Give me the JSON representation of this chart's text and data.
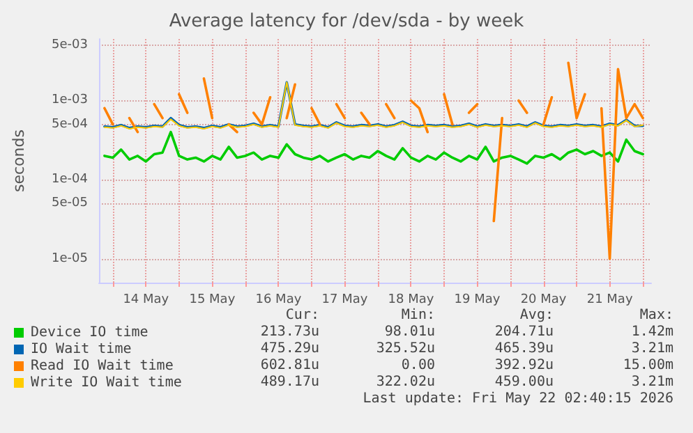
{
  "chart_data": {
    "type": "line",
    "title": "Average latency for /dev/sda - by week",
    "ylabel": "seconds",
    "log": "y",
    "grid": true,
    "legend": "bottom",
    "marker": "none",
    "xlim": [
      "2026-05-13T19:00",
      "2026-05-22T03:00"
    ],
    "xticks": [
      {
        "value": "2026-05-14T00:00",
        "label": null
      },
      {
        "value": "2026-05-14T12:00",
        "label": "14 May"
      },
      {
        "value": "2026-05-15T00:00",
        "label": null
      },
      {
        "value": "2026-05-15T12:00",
        "label": "15 May"
      },
      {
        "value": "2026-05-16T00:00",
        "label": null
      },
      {
        "value": "2026-05-16T12:00",
        "label": "16 May"
      },
      {
        "value": "2026-05-17T00:00",
        "label": null
      },
      {
        "value": "2026-05-17T12:00",
        "label": "17 May"
      },
      {
        "value": "2026-05-18T00:00",
        "label": null
      },
      {
        "value": "2026-05-18T12:00",
        "label": "18 May"
      },
      {
        "value": "2026-05-19T00:00",
        "label": null
      },
      {
        "value": "2026-05-19T12:00",
        "label": "19 May"
      },
      {
        "value": "2026-05-20T00:00",
        "label": null
      },
      {
        "value": "2026-05-20T12:00",
        "label": "20 May"
      },
      {
        "value": "2026-05-21T00:00",
        "label": null
      },
      {
        "value": "2026-05-21T12:00",
        "label": "21 May"
      },
      {
        "value": "2026-05-22T00:00",
        "label": null
      }
    ],
    "ylim": [
      5e-06,
      0.006
    ],
    "yticks": [
      {
        "value": 1e-05,
        "label": "1e-05"
      },
      {
        "value": 5e-05,
        "label": "5e-05"
      },
      {
        "value": 0.0001,
        "label": "1e-04"
      },
      {
        "value": 0.0005,
        "label": "5e-04"
      },
      {
        "value": 0.001,
        "label": "1e-03"
      },
      {
        "value": 0.005,
        "label": "5e-03"
      }
    ],
    "x": [
      "2026-05-13T21:00",
      "2026-05-14T00:00",
      "2026-05-14T03:00",
      "2026-05-14T06:00",
      "2026-05-14T09:00",
      "2026-05-14T12:00",
      "2026-05-14T15:00",
      "2026-05-14T18:00",
      "2026-05-14T21:00",
      "2026-05-15T00:00",
      "2026-05-15T03:00",
      "2026-05-15T06:00",
      "2026-05-15T09:00",
      "2026-05-15T12:00",
      "2026-05-15T15:00",
      "2026-05-15T18:00",
      "2026-05-15T21:00",
      "2026-05-16T00:00",
      "2026-05-16T03:00",
      "2026-05-16T06:00",
      "2026-05-16T09:00",
      "2026-05-16T12:00",
      "2026-05-16T15:00",
      "2026-05-16T18:00",
      "2026-05-16T21:00",
      "2026-05-17T00:00",
      "2026-05-17T03:00",
      "2026-05-17T06:00",
      "2026-05-17T09:00",
      "2026-05-17T12:00",
      "2026-05-17T15:00",
      "2026-05-17T18:00",
      "2026-05-17T21:00",
      "2026-05-18T00:00",
      "2026-05-18T03:00",
      "2026-05-18T06:00",
      "2026-05-18T09:00",
      "2026-05-18T12:00",
      "2026-05-18T15:00",
      "2026-05-18T18:00",
      "2026-05-18T21:00",
      "2026-05-19T00:00",
      "2026-05-19T03:00",
      "2026-05-19T06:00",
      "2026-05-19T09:00",
      "2026-05-19T12:00",
      "2026-05-19T15:00",
      "2026-05-19T18:00",
      "2026-05-19T21:00",
      "2026-05-20T00:00",
      "2026-05-20T03:00",
      "2026-05-20T06:00",
      "2026-05-20T09:00",
      "2026-05-20T12:00",
      "2026-05-20T15:00",
      "2026-05-20T18:00",
      "2026-05-20T21:00",
      "2026-05-21T00:00",
      "2026-05-21T03:00",
      "2026-05-21T06:00",
      "2026-05-21T09:00",
      "2026-05-21T12:00",
      "2026-05-21T15:00",
      "2026-05-21T18:00",
      "2026-05-21T21:00",
      "2026-05-22T00:00"
    ],
    "series": [
      {
        "name": "Device IO time",
        "color": "#00cc00",
        "values": [
          0.0002,
          0.00019,
          0.00024,
          0.00018,
          0.0002,
          0.00017,
          0.00021,
          0.00022,
          0.0004,
          0.0002,
          0.00018,
          0.00019,
          0.00017,
          0.0002,
          0.00018,
          0.00026,
          0.00019,
          0.0002,
          0.00022,
          0.00018,
          0.0002,
          0.00019,
          0.00028,
          0.00021,
          0.00019,
          0.00018,
          0.0002,
          0.00017,
          0.00019,
          0.00021,
          0.00018,
          0.0002,
          0.00019,
          0.00023,
          0.0002,
          0.00018,
          0.00025,
          0.00019,
          0.00017,
          0.0002,
          0.00018,
          0.00022,
          0.00019,
          0.00017,
          0.0002,
          0.00018,
          0.00026,
          0.00017,
          0.00019,
          0.0002,
          0.00018,
          0.00016,
          0.0002,
          0.00019,
          0.00021,
          0.00018,
          0.00022,
          0.00024,
          0.00021,
          0.00023,
          0.0002,
          0.00022,
          0.00017,
          0.00032,
          0.00023,
          0.00021
        ]
      },
      {
        "name": "IO Wait time",
        "color": "#0066b3",
        "values": [
          0.00047,
          0.00046,
          0.00049,
          0.00045,
          0.00047,
          0.00046,
          0.00048,
          0.00047,
          0.0006,
          0.00049,
          0.00046,
          0.00047,
          0.00045,
          0.00048,
          0.00046,
          0.0005,
          0.00047,
          0.00048,
          0.00051,
          0.00047,
          0.00049,
          0.00047,
          0.0017,
          0.0005,
          0.00048,
          0.00047,
          0.00049,
          0.00046,
          0.00053,
          0.00048,
          0.00047,
          0.00049,
          0.00048,
          0.0005,
          0.00047,
          0.00049,
          0.00054,
          0.00048,
          0.00047,
          0.00049,
          0.00048,
          0.00049,
          0.00047,
          0.00048,
          0.00051,
          0.00047,
          0.0005,
          0.00048,
          0.00049,
          0.00048,
          0.0005,
          0.00047,
          0.00053,
          0.00048,
          0.00047,
          0.00049,
          0.00048,
          0.0005,
          0.00048,
          0.00049,
          0.00047,
          0.00051,
          0.00049,
          0.00057,
          0.00048,
          0.00048
        ]
      },
      {
        "name": "Read IO Wait time",
        "color": "#ff8000",
        "values": [
          0.0008,
          0.0005,
          null,
          0.0006,
          0.0004,
          null,
          0.0009,
          0.0006,
          null,
          0.0012,
          0.0007,
          null,
          0.0019,
          0.0006,
          null,
          0.0005,
          0.0004,
          null,
          0.0007,
          0.0005,
          0.0011,
          null,
          0.0006,
          0.0016,
          null,
          0.0008,
          0.0005,
          null,
          0.0009,
          0.0006,
          null,
          0.0007,
          0.0005,
          null,
          0.0009,
          0.0006,
          null,
          0.001,
          0.0008,
          0.0004,
          null,
          0.0012,
          0.0005,
          null,
          0.0007,
          0.0009,
          null,
          3e-05,
          0.0006,
          null,
          0.001,
          0.0007,
          null,
          0.0005,
          0.0011,
          null,
          0.003,
          0.0006,
          0.0012,
          null,
          0.0008,
          1e-05,
          0.0025,
          0.0006,
          0.0009,
          0.0006
        ]
      },
      {
        "name": "Write IO Wait time",
        "color": "#ffcc00",
        "values": [
          0.00046,
          0.00045,
          0.00048,
          0.00044,
          0.00046,
          0.00045,
          0.00047,
          0.00046,
          0.00058,
          0.00048,
          0.00045,
          0.00046,
          0.00044,
          0.00047,
          0.00045,
          0.00049,
          0.00046,
          0.00047,
          0.0005,
          0.00046,
          0.00048,
          0.00046,
          0.0017,
          0.00049,
          0.00047,
          0.00046,
          0.00048,
          0.00045,
          0.00052,
          0.00047,
          0.00046,
          0.00048,
          0.00047,
          0.00049,
          0.00046,
          0.00048,
          0.00053,
          0.00047,
          0.00046,
          0.00048,
          0.00047,
          0.00048,
          0.00046,
          0.00047,
          0.0005,
          0.00046,
          0.00049,
          0.00047,
          0.00048,
          0.00047,
          0.00049,
          0.00046,
          0.00052,
          0.00047,
          0.00046,
          0.00048,
          0.00047,
          0.00049,
          0.00047,
          0.00048,
          0.00046,
          0.0005,
          0.00048,
          0.00056,
          0.00047,
          0.00049
        ]
      }
    ],
    "annotations": [
      "Cur:",
      "Min:",
      "Avg:",
      "Max:",
      "213.73u",
      "98.01u",
      "204.71u",
      "1.42m",
      "475.29u",
      "325.52u",
      "465.39u",
      "3.21m",
      "602.81u",
      "0.00",
      "392.92u",
      "15.00m",
      "489.17u",
      "322.02u",
      "459.00u",
      "3.21m",
      "Last update: Fri May 22 02:40:15 2026"
    ]
  }
}
